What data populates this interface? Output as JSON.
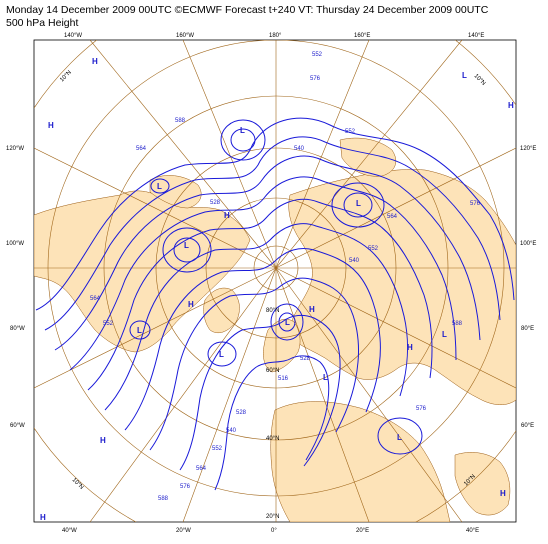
{
  "header": {
    "title": "Monday 14 December 2009 00UTC ©ECMWF Forecast t+240 VT: Thursday 24 December 2009 00UTC",
    "subtitle": "500 hPa Height"
  },
  "longitude_labels": {
    "top": [
      "140°W",
      "160°W",
      "180°",
      "160°E",
      "140°E"
    ],
    "bottom": [
      "40°W",
      "20°W",
      "0°",
      "20°E",
      "40°E"
    ],
    "left": [
      "120°W",
      "100°W",
      "80°W",
      "60°W"
    ],
    "right": [
      "120°E",
      "100°E",
      "80°E",
      "60°E"
    ]
  },
  "latitude_labels": [
    "10°N",
    "10°N",
    "10°N",
    "10°N",
    "20°N",
    "40°N",
    "60°N",
    "80°N"
  ],
  "contour_labels": [
    "552",
    "576",
    "588",
    "564",
    "552",
    "540",
    "528",
    "576",
    "564",
    "552",
    "540",
    "528",
    "516",
    "564",
    "552",
    "576",
    "588",
    "528",
    "540",
    "552",
    "564",
    "576",
    "588"
  ],
  "pressure_centers": [
    {
      "type": "H"
    },
    {
      "type": "H"
    },
    {
      "type": "H"
    },
    {
      "type": "L"
    },
    {
      "type": "L"
    },
    {
      "type": "H"
    },
    {
      "type": "L"
    },
    {
      "type": "H"
    },
    {
      "type": "L"
    },
    {
      "type": "L"
    },
    {
      "type": "H"
    },
    {
      "type": "L"
    },
    {
      "type": "L"
    },
    {
      "type": "L"
    },
    {
      "type": "H"
    },
    {
      "type": "H"
    },
    {
      "type": "H"
    },
    {
      "type": "L"
    },
    {
      "type": "L"
    },
    {
      "type": "L"
    },
    {
      "type": "H"
    }
  ],
  "colors": {
    "land": "#fde3b8",
    "ocean": "#ffffff",
    "contours": "#1a1ad9",
    "graticule": "#a0661a",
    "coast": "#9a5a10"
  }
}
